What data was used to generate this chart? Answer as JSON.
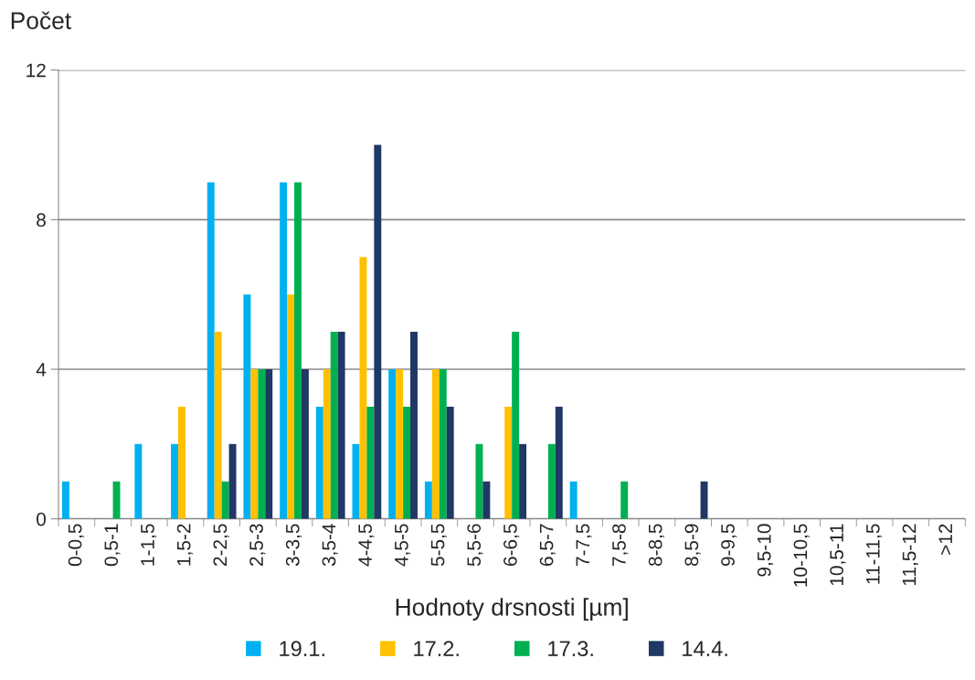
{
  "chart_data": {
    "type": "bar",
    "xlabel": "Hodnoty drsnosti [µm]",
    "ylabel": "Počet",
    "categories": [
      "0-0,5",
      "0,5-1",
      "1-1,5",
      "1,5-2",
      "2-2,5",
      "2,5-3",
      "3-3,5",
      "3,5-4",
      "4-4,5",
      "4,5-5",
      "5-5,5",
      "5,5-6",
      "6-6,5",
      "6,5-7",
      "7-7,5",
      "7,5-8",
      "8-8,5",
      "8,5-9",
      "9-9,5",
      "9,5-10",
      "10-10,5",
      "10,5-11",
      "11-11,5",
      "11,5-12",
      ">12"
    ],
    "series": [
      {
        "name": "19.1.",
        "color": "#00b0f0",
        "values": [
          1,
          0,
          2,
          2,
          9,
          6,
          9,
          3,
          2,
          4,
          1,
          0,
          0,
          0,
          1,
          0,
          0,
          0,
          0,
          0,
          0,
          0,
          0,
          0,
          0
        ]
      },
      {
        "name": "17.2.",
        "color": "#ffc000",
        "values": [
          0,
          0,
          0,
          3,
          5,
          4,
          6,
          4,
          7,
          4,
          4,
          0,
          3,
          0,
          0,
          0,
          0,
          0,
          0,
          0,
          0,
          0,
          0,
          0,
          0
        ]
      },
      {
        "name": "17.3.",
        "color": "#00b050",
        "values": [
          0,
          1,
          0,
          0,
          1,
          4,
          9,
          5,
          3,
          3,
          4,
          2,
          5,
          2,
          0,
          1,
          0,
          0,
          0,
          0,
          0,
          0,
          0,
          0,
          0
        ]
      },
      {
        "name": "14.4.",
        "color": "#1f3864",
        "values": [
          0,
          0,
          0,
          0,
          2,
          4,
          4,
          5,
          10,
          5,
          3,
          1,
          2,
          3,
          0,
          0,
          0,
          1,
          0,
          0,
          0,
          0,
          0,
          0,
          0
        ]
      }
    ],
    "ylim": [
      0,
      12
    ],
    "yticks": [
      0,
      4,
      8,
      12
    ],
    "grid": "y",
    "legend": "bottom"
  }
}
